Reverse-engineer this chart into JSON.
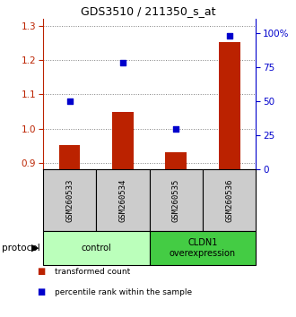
{
  "title": "GDS3510 / 211350_s_at",
  "samples": [
    "GSM260533",
    "GSM260534",
    "GSM260535",
    "GSM260536"
  ],
  "red_values": [
    0.952,
    1.048,
    0.932,
    1.252
  ],
  "blue_values": [
    50,
    78,
    30,
    98
  ],
  "ylim_left": [
    0.88,
    1.32
  ],
  "ylim_right": [
    0,
    110
  ],
  "yticks_left": [
    0.9,
    1.0,
    1.1,
    1.2,
    1.3
  ],
  "yticks_right": [
    0,
    25,
    50,
    75,
    100
  ],
  "ytick_labels_right": [
    "0",
    "25",
    "50",
    "75",
    "100%"
  ],
  "red_color": "#bb2200",
  "blue_color": "#0000cc",
  "bar_width": 0.4,
  "groups": [
    {
      "label": "control",
      "indices": [
        0,
        1
      ],
      "color": "#bbffbb"
    },
    {
      "label": "CLDN1\noverexpression",
      "indices": [
        2,
        3
      ],
      "color": "#44cc44"
    }
  ],
  "protocol_label": "protocol",
  "legend_items": [
    {
      "color": "#bb2200",
      "label": "transformed count"
    },
    {
      "color": "#0000cc",
      "label": "percentile rank within the sample"
    }
  ]
}
